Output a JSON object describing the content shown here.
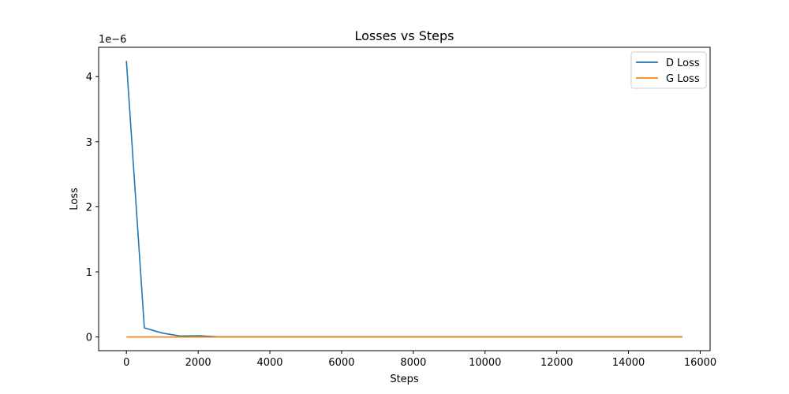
{
  "chart_data": {
    "type": "line",
    "title": "Losses vs Steps",
    "xlabel": "Steps",
    "ylabel": "Loss",
    "y_offset_label": "1e−6",
    "xlim": [
      -775,
      16275
    ],
    "ylim": [
      -0.21,
      4.45
    ],
    "y_scale_factor": 1e-06,
    "xticks": [
      0,
      2000,
      4000,
      6000,
      8000,
      10000,
      12000,
      14000,
      16000
    ],
    "yticks": [
      0,
      1,
      2,
      3,
      4
    ],
    "grid": false,
    "legend_position": "top-right",
    "series": [
      {
        "name": "D Loss",
        "color": "#1f77b4",
        "x": [
          0,
          500,
          1000,
          1500,
          2000,
          2500,
          3000,
          4000,
          5000,
          6000,
          7000,
          8000,
          9000,
          10000,
          11000,
          12000,
          13000,
          14000,
          15000,
          15500
        ],
        "y": [
          4.24,
          0.14,
          0.06,
          0.015,
          0.02,
          0.005,
          0.003,
          0.002,
          0.002,
          0.002,
          0.002,
          0.002,
          0.002,
          0.002,
          0.002,
          0.002,
          0.002,
          0.002,
          0.002,
          0.002
        ]
      },
      {
        "name": "G Loss",
        "color": "#ff7f0e",
        "x": [
          0,
          15500
        ],
        "y": [
          0.0,
          0.0
        ]
      }
    ]
  }
}
